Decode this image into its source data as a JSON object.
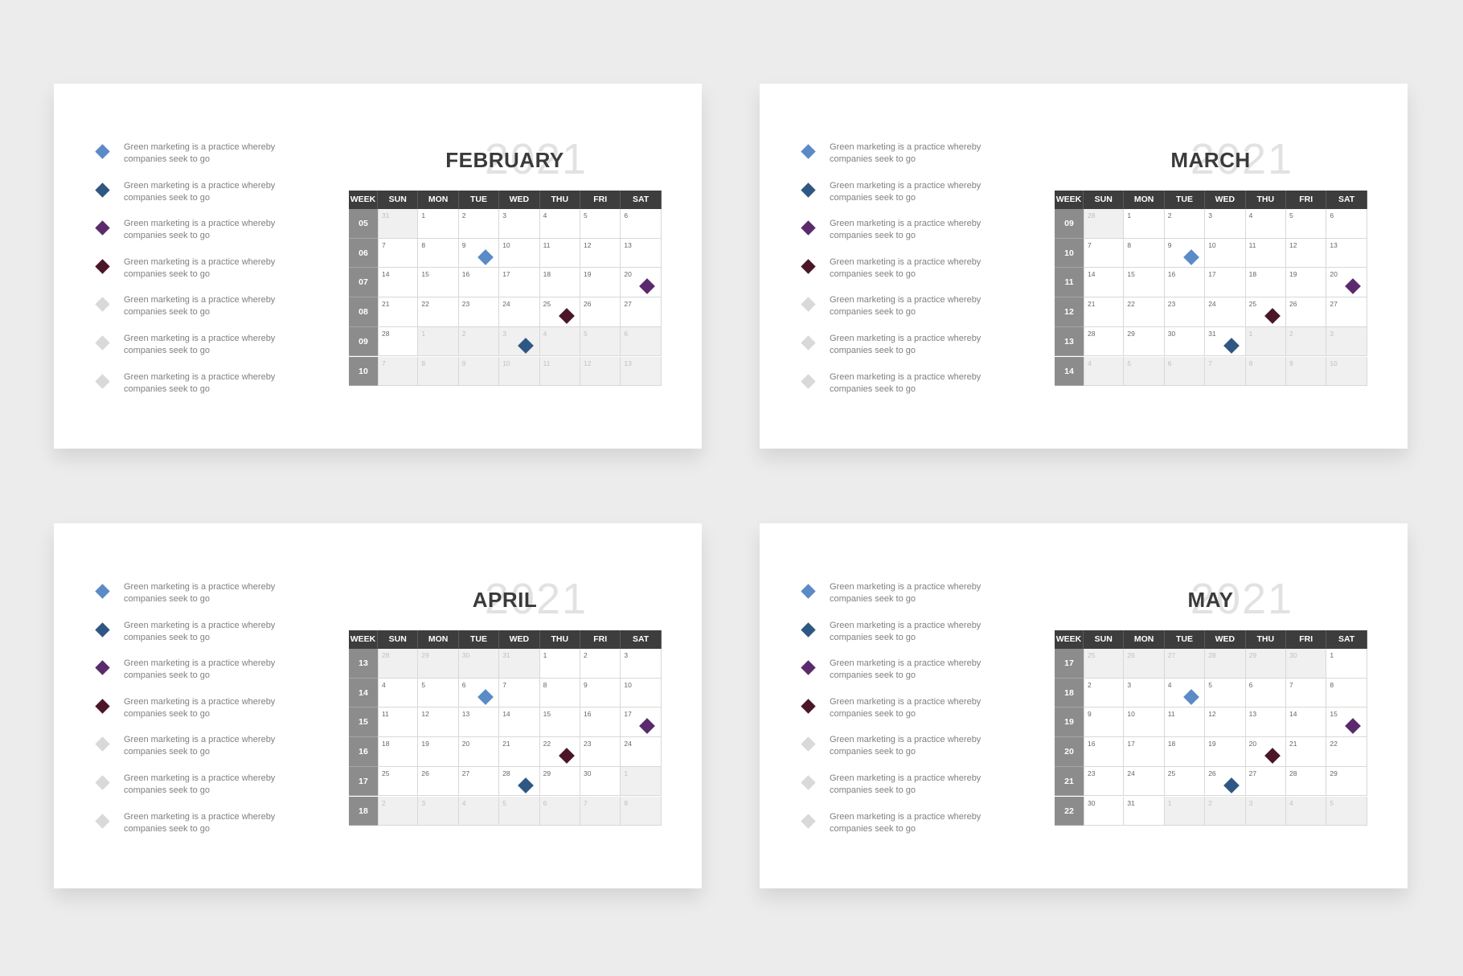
{
  "header": [
    "WEEK",
    "SUN",
    "MON",
    "TUE",
    "WED",
    "THU",
    "FRI",
    "SAT"
  ],
  "slides": [
    {
      "month": "FEBRUARY",
      "year": "2021",
      "legend": [
        "Green marketing is a practice whereby companies seek to go",
        "Green marketing is a practice whereby companies seek to go",
        "Green marketing is a practice whereby companies seek to go",
        "Green marketing is a practice whereby companies seek to go",
        "Green marketing is a practice whereby companies seek to go",
        "Green marketing is a practice whereby companies seek to go",
        "Green marketing is a practice whereby companies seek to go"
      ],
      "weeks": [
        "05",
        "06",
        "07",
        "08",
        "09",
        "10"
      ],
      "days": [
        [
          31,
          1,
          2,
          3,
          4,
          5,
          6
        ],
        [
          7,
          8,
          9,
          10,
          11,
          12,
          13
        ],
        [
          14,
          15,
          16,
          17,
          18,
          19,
          20
        ],
        [
          21,
          22,
          23,
          24,
          25,
          26,
          27
        ],
        [
          28,
          1,
          2,
          3,
          4,
          5,
          6
        ],
        [
          7,
          8,
          9,
          10,
          11,
          12,
          13
        ]
      ]
    },
    {
      "month": "MARCH",
      "year": "2021",
      "legend": [
        "Green marketing is a practice whereby companies seek to go",
        "Green marketing is a practice whereby companies seek to go",
        "Green marketing is a practice whereby companies seek to go",
        "Green marketing is a practice whereby companies seek to go",
        "Green marketing is a practice whereby companies seek to go",
        "Green marketing is a practice whereby companies seek to go",
        "Green marketing is a practice whereby companies seek to go"
      ],
      "weeks": [
        "09",
        "10",
        "11",
        "12",
        "13",
        "14"
      ],
      "days": [
        [
          28,
          1,
          2,
          3,
          4,
          5,
          6
        ],
        [
          7,
          8,
          9,
          10,
          11,
          12,
          13
        ],
        [
          14,
          15,
          16,
          17,
          18,
          19,
          20
        ],
        [
          21,
          22,
          23,
          24,
          25,
          26,
          27
        ],
        [
          28,
          29,
          30,
          31,
          1,
          2,
          3
        ],
        [
          4,
          5,
          6,
          7,
          8,
          9,
          10
        ]
      ]
    },
    {
      "month": "APRIL",
      "year": "2021",
      "legend": [
        "Green marketing is a practice whereby companies seek to go",
        "Green marketing is a practice whereby companies seek to go",
        "Green marketing is a practice whereby companies seek to go",
        "Green marketing is a practice whereby companies seek to go",
        "Green marketing is a practice whereby companies seek to go",
        "Green marketing is a practice whereby companies seek to go",
        "Green marketing is a practice whereby companies seek to go"
      ],
      "weeks": [
        "13",
        "14",
        "15",
        "16",
        "17",
        "18"
      ],
      "days": [
        [
          28,
          29,
          30,
          31,
          1,
          2,
          3
        ],
        [
          4,
          5,
          6,
          7,
          8,
          9,
          10
        ],
        [
          11,
          12,
          13,
          14,
          15,
          16,
          17
        ],
        [
          18,
          19,
          20,
          21,
          22,
          23,
          24
        ],
        [
          25,
          26,
          27,
          28,
          29,
          30,
          1
        ],
        [
          2,
          3,
          4,
          5,
          6,
          7,
          8
        ]
      ]
    },
    {
      "month": "MAY",
      "year": "2021",
      "legend": [
        "Green marketing is a practice whereby companies seek to go",
        "Green marketing is a practice whereby companies seek to go",
        "Green marketing is a practice whereby companies seek to go",
        "Green marketing is a practice whereby companies seek to go",
        "Green marketing is a practice whereby companies seek to go",
        "Green marketing is a practice whereby companies seek to go",
        "Green marketing is a practice whereby companies seek to go"
      ],
      "weeks": [
        "17",
        "18",
        "19",
        "20",
        "21",
        "22"
      ],
      "days": [
        [
          25,
          26,
          27,
          28,
          29,
          30,
          1
        ],
        [
          2,
          3,
          4,
          5,
          6,
          7,
          8
        ],
        [
          9,
          10,
          11,
          12,
          13,
          14,
          15
        ],
        [
          16,
          17,
          18,
          19,
          20,
          21,
          22
        ],
        [
          23,
          24,
          25,
          26,
          27,
          28,
          29
        ],
        [
          30,
          31,
          1,
          2,
          3,
          4,
          5
        ]
      ]
    }
  ]
}
